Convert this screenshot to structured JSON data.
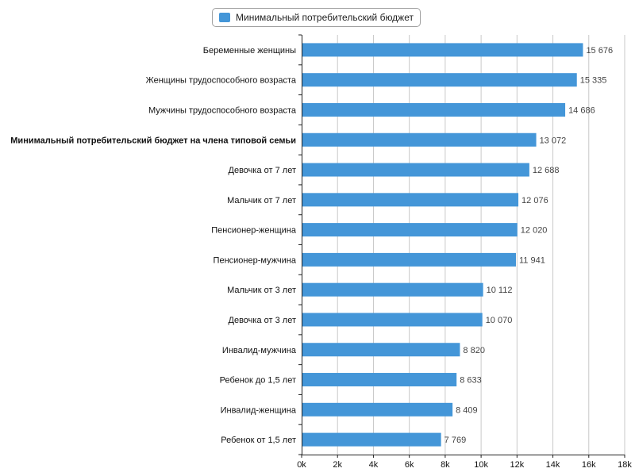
{
  "chart_data": {
    "type": "bar",
    "orientation": "horizontal",
    "legend": "Минимальный потребительский бюджет",
    "legend_position": "top-center",
    "color": "#4496d8",
    "grid": true,
    "xlim": [
      0,
      18000
    ],
    "ticks": [
      0,
      2000,
      4000,
      6000,
      8000,
      10000,
      12000,
      14000,
      16000,
      18000
    ],
    "tick_labels": [
      "0k",
      "2k",
      "4k",
      "6k",
      "8k",
      "10k",
      "12k",
      "14k",
      "16k",
      "18k"
    ],
    "categories": [
      "Беременные женщины",
      "Женщины трудоспособного возраста",
      "Мужчины трудоспособного возраста",
      "Минимальный потребительский бюджет на члена типовой семьи",
      "Девочка от 7 лет",
      "Мальчик от 7 лет",
      "Пенсионер-женщина",
      "Пенсионер-мужчина",
      "Мальчик от 3 лет",
      "Девочка от 3 лет",
      "Инвалид-мужчина",
      "Ребенок до 1,5 лет",
      "Инвалид-женщина",
      "Ребенок от 1,5 лет"
    ],
    "bold_category": "Минимальный потребительский бюджет на члена типовой семьи",
    "values": [
      15676,
      15335,
      14686,
      13072,
      12688,
      12076,
      12020,
      11941,
      10112,
      10070,
      8820,
      8633,
      8409,
      7769
    ],
    "value_labels": [
      "15 676",
      "15 335",
      "14 686",
      "13 072",
      "12 688",
      "12 076",
      "12 020",
      "11 941",
      "10 112",
      "10 070",
      "8 820",
      "8 633",
      "8 409",
      "7 769"
    ]
  }
}
